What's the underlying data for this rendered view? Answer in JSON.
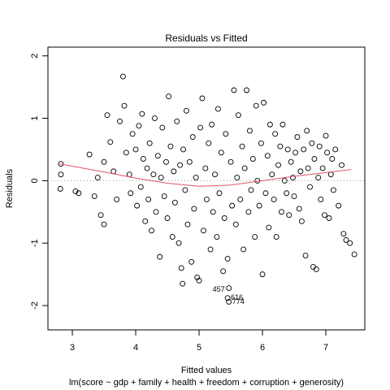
{
  "chart_data": {
    "type": "scatter",
    "title": "Residuals vs Fitted",
    "x_label": "Fitted values",
    "y_label": "Residuals",
    "subtitle": "lm(score ~ gdp + family + health + freedom + corruption + generosity)",
    "xlim": [
      2.615,
      7.615
    ],
    "ylim": [
      -2.39,
      2.14
    ],
    "xticks": [
      3,
      4,
      5,
      6,
      7
    ],
    "yticks": [
      -2,
      -1,
      0,
      1,
      2
    ],
    "point_color": "#000000",
    "reference_line": {
      "y": 0,
      "color": "#999999"
    },
    "smooth": {
      "color": "#df536b",
      "x": [
        2.8,
        3.5,
        4,
        4.5,
        5,
        5.5,
        6,
        6.5,
        7,
        7.4
      ],
      "y": [
        0.27,
        0.14,
        0.04,
        -0.04,
        -0.09,
        -0.07,
        0.0,
        0.07,
        0.13,
        0.18
      ]
    },
    "x": [
      2.82,
      2.82,
      2.81,
      3.05,
      3.1,
      3.27,
      3.35,
      3.4,
      3.45,
      3.5,
      3.5,
      3.55,
      3.6,
      3.65,
      3.7,
      3.75,
      3.8,
      3.82,
      3.85,
      3.9,
      3.92,
      3.95,
      4.0,
      4.02,
      4.05,
      4.08,
      4.1,
      4.12,
      4.15,
      4.18,
      4.2,
      4.22,
      4.25,
      4.28,
      4.3,
      4.32,
      4.35,
      4.38,
      4.4,
      4.42,
      4.45,
      4.48,
      4.5,
      4.52,
      4.55,
      4.58,
      4.6,
      4.62,
      4.65,
      4.68,
      4.7,
      4.72,
      4.74,
      4.75,
      4.78,
      4.8,
      4.82,
      4.85,
      4.88,
      4.9,
      4.92,
      4.95,
      4.97,
      5.0,
      5.02,
      5.05,
      5.07,
      5.1,
      5.12,
      5.15,
      5.18,
      5.2,
      5.22,
      5.25,
      5.28,
      5.3,
      5.32,
      5.35,
      5.38,
      5.4,
      5.42,
      5.45,
      5.47,
      5.45,
      5.47,
      5.5,
      5.52,
      5.55,
      5.58,
      5.6,
      5.62,
      5.65,
      5.68,
      5.7,
      5.72,
      5.75,
      5.78,
      5.8,
      5.82,
      5.85,
      5.88,
      5.9,
      5.92,
      5.95,
      5.98,
      6.0,
      6.02,
      6.05,
      6.08,
      6.1,
      6.12,
      6.15,
      6.18,
      6.2,
      6.22,
      6.25,
      6.28,
      6.3,
      6.32,
      6.35,
      6.38,
      6.4,
      6.42,
      6.45,
      6.48,
      6.5,
      6.52,
      6.55,
      6.58,
      6.6,
      6.62,
      6.65,
      6.68,
      6.7,
      6.72,
      6.75,
      6.78,
      6.8,
      6.82,
      6.85,
      6.88,
      6.9,
      6.92,
      6.95,
      6.98,
      7.0,
      7.02,
      7.05,
      7.08,
      7.1,
      7.12,
      7.15,
      7.2,
      7.25,
      7.28,
      7.32,
      7.38,
      7.45
    ],
    "values": [
      0.27,
      0.1,
      -0.13,
      -0.17,
      -0.2,
      0.42,
      -0.25,
      0.05,
      -0.55,
      -0.7,
      0.3,
      1.05,
      0.62,
      0.15,
      -0.3,
      0.95,
      1.67,
      1.2,
      0.45,
      0.1,
      -0.2,
      0.75,
      0.5,
      -0.4,
      0.88,
      -0.1,
      1.07,
      0.35,
      -0.65,
      0.2,
      -0.3,
      0.6,
      -0.8,
      0.1,
      1.0,
      -0.5,
      0.4,
      -1.22,
      0.05,
      0.85,
      -0.25,
      0.3,
      -0.6,
      1.35,
      0.55,
      -0.9,
      0.15,
      -0.35,
      0.95,
      -1.0,
      0.25,
      -1.4,
      -1.65,
      0.5,
      -0.15,
      1.12,
      -0.7,
      0.3,
      -1.3,
      0.7,
      -0.45,
      0.05,
      -1.55,
      -1.6,
      0.85,
      1.32,
      -0.8,
      0.2,
      -0.3,
      0.6,
      -1.1,
      0.9,
      -0.5,
      0.1,
      -0.9,
      1.15,
      -0.2,
      0.45,
      -1.45,
      -0.6,
      0.75,
      -1.25,
      -1.72,
      -1.88,
      -1.94,
      0.3,
      -0.4,
      1.45,
      -0.7,
      0.05,
      1.05,
      -0.3,
      0.55,
      -1.1,
      0.2,
      1.45,
      -0.5,
      0.8,
      -0.15,
      0.35,
      -0.9,
      1.2,
      0,
      -0.4,
      0.6,
      -1.5,
      1.25,
      -0.2,
      0.4,
      -0.75,
      0.9,
      0.1,
      -0.3,
      0.75,
      -0.9,
      0.25,
      0.55,
      -0.5,
      0.9,
      0,
      -0.2,
      0.5,
      -0.55,
      0.3,
      0.05,
      -0.25,
      0.45,
      0.7,
      -0.45,
      0.15,
      -0.65,
      0.5,
      -1.2,
      0.8,
      0.2,
      -0.1,
      0.6,
      -1.38,
      0.35,
      -1.42,
      0.05,
      0.55,
      -0.3,
      0.2,
      -0.55,
      0.72,
      0.45,
      -0.6,
      0.1,
      0.35,
      -0.15,
      0.5,
      -0.4,
      0.25,
      -0.85,
      -0.95,
      -1.0,
      -1.18
    ],
    "annotations": [
      {
        "text": "457",
        "point": 82
      },
      {
        "text": "616",
        "point": 83
      },
      {
        "text": "774",
        "point": 84
      }
    ]
  }
}
